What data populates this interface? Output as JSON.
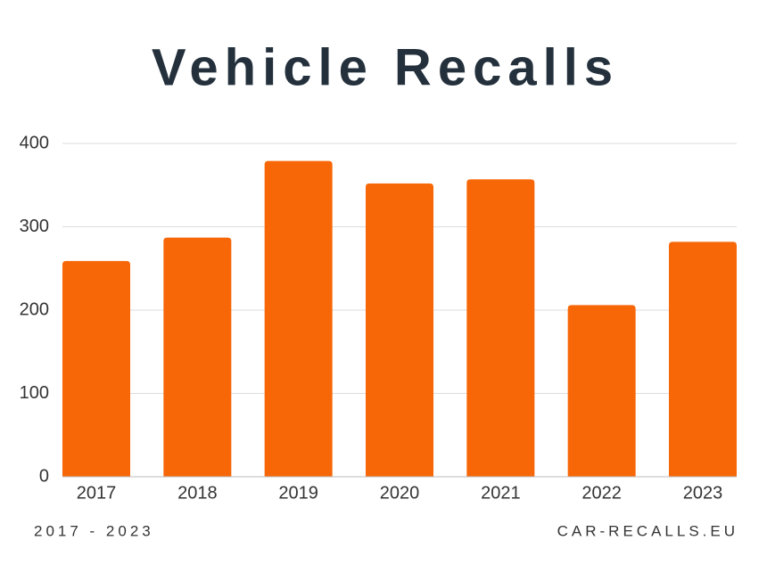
{
  "chart_data": {
    "type": "bar",
    "title": "Vehicle Recalls",
    "categories": [
      "2017",
      "2018",
      "2019",
      "2020",
      "2021",
      "2022",
      "2023"
    ],
    "values": [
      259,
      287,
      379,
      352,
      357,
      206,
      282
    ],
    "color": "#f76707",
    "ylim": [
      0,
      400
    ],
    "yticks": [
      0,
      100,
      200,
      300,
      400
    ],
    "grid": true,
    "subtitle": "2017 - 2023",
    "source": "CAR-RECALLS.EU"
  }
}
